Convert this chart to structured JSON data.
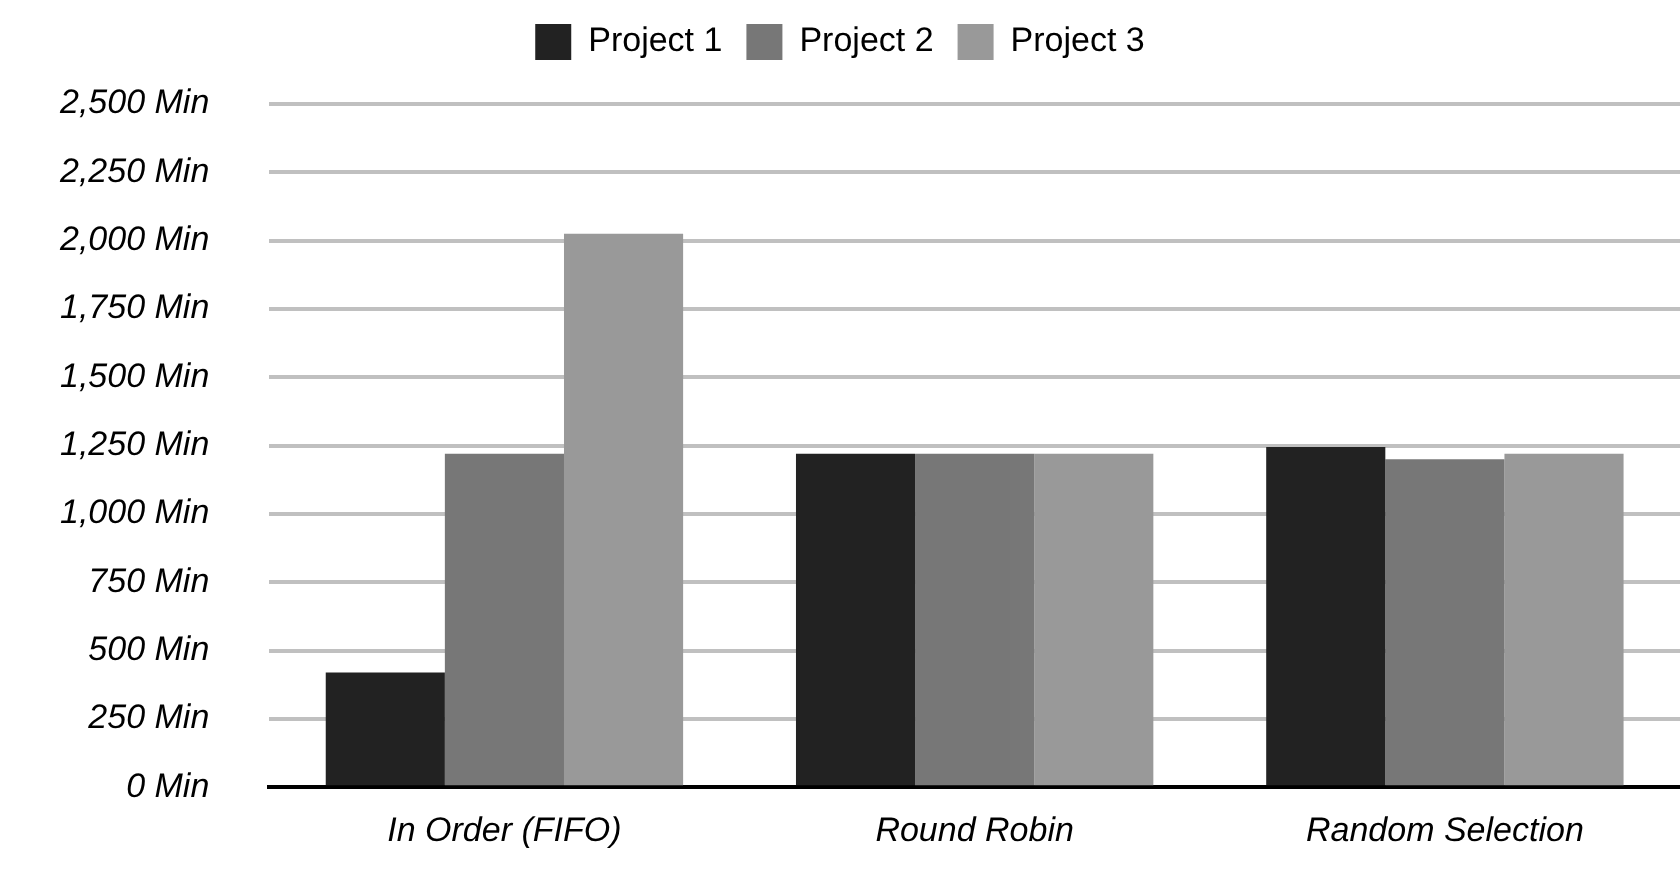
{
  "chart_data": {
    "type": "bar",
    "categories": [
      "In Order (FIFO)",
      "Round Robin",
      "Random Selection"
    ],
    "series": [
      {
        "name": "Project 1",
        "color": "#222222",
        "values": [
          420,
          1220,
          1245
        ]
      },
      {
        "name": "Project 2",
        "color": "#777777",
        "values": [
          1220,
          1220,
          1200
        ]
      },
      {
        "name": "Project 3",
        "color": "#999999",
        "values": [
          2025,
          1220,
          1220
        ]
      }
    ],
    "ylim": [
      0,
      2500
    ],
    "yticks": [
      {
        "value": 0,
        "label": "0 Min"
      },
      {
        "value": 250,
        "label": "250 Min"
      },
      {
        "value": 500,
        "label": "500 Min"
      },
      {
        "value": 750,
        "label": "750 Min"
      },
      {
        "value": 1000,
        "label": "1,000 Min"
      },
      {
        "value": 1250,
        "label": "1,250 Min"
      },
      {
        "value": 1500,
        "label": "1,500 Min"
      },
      {
        "value": 1750,
        "label": "1,750 Min"
      },
      {
        "value": 2000,
        "label": "2,000 Min"
      },
      {
        "value": 2250,
        "label": "2,250 Min"
      },
      {
        "value": 2500,
        "label": "2,500 Min"
      }
    ],
    "grid": "y",
    "legend": "top"
  }
}
